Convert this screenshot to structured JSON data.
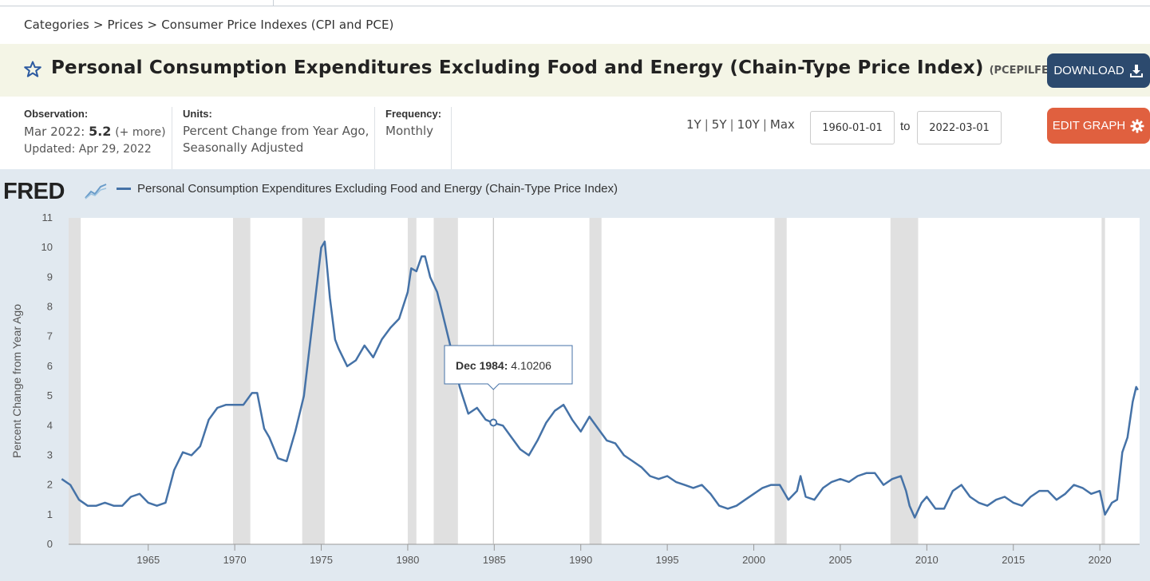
{
  "breadcrumb": {
    "items": [
      "Categories",
      "Prices",
      "Consumer Price Indexes (CPI and PCE)"
    ],
    "separator": ">"
  },
  "header": {
    "title": "Personal Consumption Expenditures Excluding Food and Energy (Chain-Type Price Index)",
    "series_id": "(PCEPILFE)",
    "download_label": "DOWNLOAD",
    "edit_graph_label": "EDIT GRAPH"
  },
  "observation": {
    "label": "Observation:",
    "period": "Mar 2022:",
    "value": "5.2",
    "more": "(+ more)",
    "updated": "Updated: Apr 29, 2022"
  },
  "units": {
    "label": "Units:",
    "line1": "Percent Change from Year Ago,",
    "line2": "Seasonally Adjusted"
  },
  "frequency": {
    "label": "Frequency:",
    "value": "Monthly"
  },
  "ranges": [
    "1Y",
    "5Y",
    "10Y",
    "Max"
  ],
  "date_range": {
    "from": "1960-01-01",
    "to_label": "to",
    "to": "2022-03-01"
  },
  "chart_header": {
    "logo": "FRED",
    "legend": "Personal Consumption Expenditures Excluding Food and Energy (Chain-Type Price Index)"
  },
  "tooltip": {
    "date": "Dec 1984:",
    "value": "4.10206"
  },
  "colors": {
    "series": "#4572a7",
    "download": "#2c4a6e",
    "edit": "#e0603f",
    "title_bar": "#f4f5e6",
    "panel": "#e1e9f0",
    "recession": "#e0e0e0"
  },
  "icons": {
    "favorite": "star-icon",
    "download": "download-icon",
    "edit": "gear-icon",
    "logo_chart": "trend-chart-icon"
  },
  "chart_data": {
    "type": "line",
    "ylabel": "Percent Change from Year Ago",
    "ylim": [
      0,
      11
    ],
    "yticks": [
      "0",
      "1",
      "2",
      "3",
      "4",
      "5",
      "6",
      "7",
      "8",
      "9",
      "10",
      "11"
    ],
    "xticks": [
      "1965",
      "1970",
      "1975",
      "1980",
      "1985",
      "1990",
      "1995",
      "2000",
      "2005",
      "2010",
      "2015",
      "2020"
    ],
    "xlim": [
      1960.4,
      2022.3
    ],
    "recessions": [
      [
        1960.3,
        1961.1
      ],
      [
        1969.9,
        1970.9
      ],
      [
        1973.9,
        1975.2
      ],
      [
        1980.0,
        1980.5
      ],
      [
        1981.5,
        1982.9
      ],
      [
        1990.5,
        1991.2
      ],
      [
        2001.2,
        2001.9
      ],
      [
        2007.9,
        2009.5
      ],
      [
        2020.1,
        2020.3
      ]
    ],
    "series": [
      {
        "name": "Personal Consumption Expenditures Excluding Food and Energy (Chain-Type Price Index)",
        "points": [
          [
            1960.0,
            2.2
          ],
          [
            1960.5,
            2.0
          ],
          [
            1961.0,
            1.5
          ],
          [
            1961.5,
            1.3
          ],
          [
            1962.0,
            1.3
          ],
          [
            1962.5,
            1.4
          ],
          [
            1963.0,
            1.3
          ],
          [
            1963.5,
            1.3
          ],
          [
            1964.0,
            1.6
          ],
          [
            1964.5,
            1.7
          ],
          [
            1965.0,
            1.4
          ],
          [
            1965.5,
            1.3
          ],
          [
            1966.0,
            1.4
          ],
          [
            1966.5,
            2.5
          ],
          [
            1967.0,
            3.1
          ],
          [
            1967.5,
            3.0
          ],
          [
            1968.0,
            3.3
          ],
          [
            1968.5,
            4.2
          ],
          [
            1969.0,
            4.6
          ],
          [
            1969.5,
            4.7
          ],
          [
            1970.0,
            4.7
          ],
          [
            1970.5,
            4.7
          ],
          [
            1971.0,
            5.1
          ],
          [
            1971.3,
            5.1
          ],
          [
            1971.7,
            3.9
          ],
          [
            1972.0,
            3.6
          ],
          [
            1972.5,
            2.9
          ],
          [
            1973.0,
            2.8
          ],
          [
            1973.5,
            3.8
          ],
          [
            1974.0,
            5.0
          ],
          [
            1974.5,
            7.5
          ],
          [
            1975.0,
            10.0
          ],
          [
            1975.2,
            10.2
          ],
          [
            1975.5,
            8.3
          ],
          [
            1975.8,
            6.9
          ],
          [
            1976.0,
            6.6
          ],
          [
            1976.5,
            6.0
          ],
          [
            1977.0,
            6.2
          ],
          [
            1977.5,
            6.7
          ],
          [
            1978.0,
            6.3
          ],
          [
            1978.5,
            6.9
          ],
          [
            1979.0,
            7.3
          ],
          [
            1979.5,
            7.6
          ],
          [
            1980.0,
            8.5
          ],
          [
            1980.2,
            9.3
          ],
          [
            1980.5,
            9.2
          ],
          [
            1980.8,
            9.7
          ],
          [
            1981.0,
            9.7
          ],
          [
            1981.3,
            9.0
          ],
          [
            1981.7,
            8.5
          ],
          [
            1982.0,
            7.8
          ],
          [
            1982.5,
            6.6
          ],
          [
            1983.0,
            5.3
          ],
          [
            1983.5,
            4.4
          ],
          [
            1984.0,
            4.6
          ],
          [
            1984.5,
            4.2
          ],
          [
            1984.9,
            4.1
          ],
          [
            1985.5,
            4.0
          ],
          [
            1986.0,
            3.6
          ],
          [
            1986.5,
            3.2
          ],
          [
            1987.0,
            3.0
          ],
          [
            1987.5,
            3.5
          ],
          [
            1988.0,
            4.1
          ],
          [
            1988.5,
            4.5
          ],
          [
            1989.0,
            4.7
          ],
          [
            1989.5,
            4.2
          ],
          [
            1990.0,
            3.8
          ],
          [
            1990.5,
            4.3
          ],
          [
            1991.0,
            3.9
          ],
          [
            1991.5,
            3.5
          ],
          [
            1992.0,
            3.4
          ],
          [
            1992.5,
            3.0
          ],
          [
            1993.0,
            2.8
          ],
          [
            1993.5,
            2.6
          ],
          [
            1994.0,
            2.3
          ],
          [
            1994.5,
            2.2
          ],
          [
            1995.0,
            2.3
          ],
          [
            1995.5,
            2.1
          ],
          [
            1996.0,
            2.0
          ],
          [
            1996.5,
            1.9
          ],
          [
            1997.0,
            2.0
          ],
          [
            1997.5,
            1.7
          ],
          [
            1998.0,
            1.3
          ],
          [
            1998.5,
            1.2
          ],
          [
            1999.0,
            1.3
          ],
          [
            1999.5,
            1.5
          ],
          [
            2000.0,
            1.7
          ],
          [
            2000.5,
            1.9
          ],
          [
            2001.0,
            2.0
          ],
          [
            2001.5,
            2.0
          ],
          [
            2002.0,
            1.5
          ],
          [
            2002.5,
            1.8
          ],
          [
            2002.7,
            2.3
          ],
          [
            2003.0,
            1.6
          ],
          [
            2003.5,
            1.5
          ],
          [
            2004.0,
            1.9
          ],
          [
            2004.5,
            2.1
          ],
          [
            2005.0,
            2.2
          ],
          [
            2005.5,
            2.1
          ],
          [
            2006.0,
            2.3
          ],
          [
            2006.5,
            2.4
          ],
          [
            2007.0,
            2.4
          ],
          [
            2007.5,
            2.0
          ],
          [
            2008.0,
            2.2
          ],
          [
            2008.5,
            2.3
          ],
          [
            2008.8,
            1.8
          ],
          [
            2009.0,
            1.3
          ],
          [
            2009.3,
            0.9
          ],
          [
            2009.7,
            1.4
          ],
          [
            2010.0,
            1.6
          ],
          [
            2010.5,
            1.2
          ],
          [
            2011.0,
            1.2
          ],
          [
            2011.5,
            1.8
          ],
          [
            2012.0,
            2.0
          ],
          [
            2012.5,
            1.6
          ],
          [
            2013.0,
            1.4
          ],
          [
            2013.5,
            1.3
          ],
          [
            2014.0,
            1.5
          ],
          [
            2014.5,
            1.6
          ],
          [
            2015.0,
            1.4
          ],
          [
            2015.5,
            1.3
          ],
          [
            2016.0,
            1.6
          ],
          [
            2016.5,
            1.8
          ],
          [
            2017.0,
            1.8
          ],
          [
            2017.5,
            1.5
          ],
          [
            2018.0,
            1.7
          ],
          [
            2018.5,
            2.0
          ],
          [
            2019.0,
            1.9
          ],
          [
            2019.5,
            1.7
          ],
          [
            2020.0,
            1.8
          ],
          [
            2020.3,
            1.0
          ],
          [
            2020.7,
            1.4
          ],
          [
            2021.0,
            1.5
          ],
          [
            2021.3,
            3.1
          ],
          [
            2021.6,
            3.6
          ],
          [
            2021.9,
            4.8
          ],
          [
            2022.1,
            5.3
          ],
          [
            2022.2,
            5.2
          ]
        ]
      }
    ]
  }
}
